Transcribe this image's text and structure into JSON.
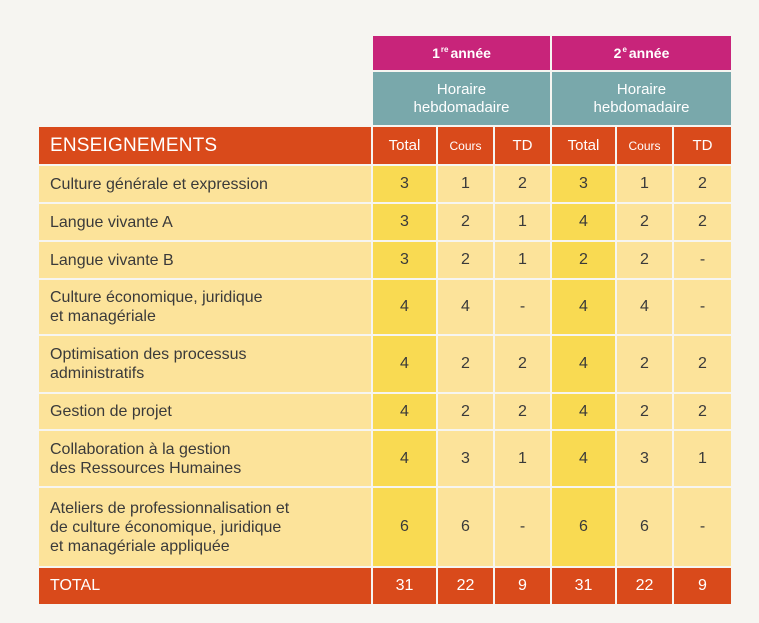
{
  "years": [
    {
      "number": "1",
      "suffix": "re",
      "label": "année"
    },
    {
      "number": "2",
      "suffix": "e",
      "label": "année"
    }
  ],
  "horaire_label": "Horaire\nhebdomadaire",
  "header": {
    "title": "ENSEIGNEMENTS",
    "total": "Total",
    "cours": "Cours",
    "td": "TD"
  },
  "rows": [
    {
      "subject": "Culture générale et expression",
      "y1": [
        "3",
        "1",
        "2"
      ],
      "y2": [
        "3",
        "1",
        "2"
      ]
    },
    {
      "subject": "Langue vivante A",
      "y1": [
        "3",
        "2",
        "1"
      ],
      "y2": [
        "4",
        "2",
        "2"
      ]
    },
    {
      "subject": "Langue vivante B",
      "y1": [
        "3",
        "2",
        "1"
      ],
      "y2": [
        "2",
        "2",
        "-"
      ]
    },
    {
      "subject": "Culture économique, juridique\net managériale",
      "y1": [
        "4",
        "4",
        "-"
      ],
      "y2": [
        "4",
        "4",
        "-"
      ]
    },
    {
      "subject": "Optimisation des processus\nadministratifs",
      "y1": [
        "4",
        "2",
        "2"
      ],
      "y2": [
        "4",
        "2",
        "2"
      ]
    },
    {
      "subject": "Gestion de projet",
      "y1": [
        "4",
        "2",
        "2"
      ],
      "y2": [
        "4",
        "2",
        "2"
      ]
    },
    {
      "subject": "Collaboration à la gestion\ndes Ressources Humaines",
      "y1": [
        "4",
        "3",
        "1"
      ],
      "y2": [
        "4",
        "3",
        "1"
      ]
    },
    {
      "subject": "Ateliers de professionnalisation et\nde culture économique, juridique\net managériale appliquée",
      "y1": [
        "6",
        "6",
        "-"
      ],
      "y2": [
        "6",
        "6",
        "-"
      ]
    }
  ],
  "footer": {
    "label": "TOTAL",
    "y1": [
      "31",
      "22",
      "9"
    ],
    "y2": [
      "31",
      "22",
      "9"
    ]
  },
  "colors": {
    "year_header": "#c8247a",
    "horaire_header": "#79a8ab",
    "orange_header": "#d94a1b",
    "row_light": "#fce39a",
    "total_column": "#f9da52"
  }
}
